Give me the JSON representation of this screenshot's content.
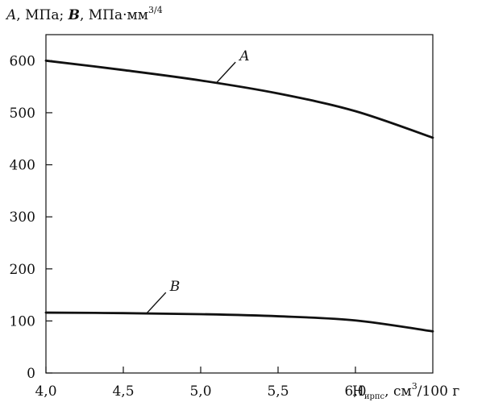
{
  "chart_data": {
    "type": "line",
    "title": "",
    "ylabel": {
      "prefix": "A",
      "unit_a": ", МПа; ",
      "symbol_b": "B",
      "unit_b": ", МПа·мм",
      "unit_b_sup": "3/4"
    },
    "xlabel": {
      "main": "H",
      "sub": "ирпс",
      "unit": ", см",
      "unit_sup": "3",
      "tail": "/100 г"
    },
    "xlim": [
      4.0,
      6.5
    ],
    "ylim": [
      0,
      650
    ],
    "x_ticks": [
      4.0,
      4.5,
      5.0,
      5.5,
      6.0
    ],
    "x_tick_labels": [
      "4,0",
      "4,5",
      "5,0",
      "5,5",
      "6,0"
    ],
    "y_ticks": [
      0,
      100,
      200,
      300,
      400,
      500,
      600
    ],
    "y_tick_labels": [
      "0",
      "100",
      "200",
      "300",
      "400",
      "500",
      "600"
    ],
    "grid": false,
    "series": [
      {
        "name": "A",
        "color": "#111111",
        "x": [
          4.0,
          4.5,
          5.0,
          5.5,
          6.0,
          6.5
        ],
        "y": [
          600,
          582,
          562,
          537,
          503,
          452
        ]
      },
      {
        "name": "B",
        "color": "#111111",
        "x": [
          4.0,
          4.5,
          5.0,
          5.5,
          6.0,
          6.5
        ],
        "y": [
          116,
          115,
          113,
          109,
          101,
          80
        ]
      }
    ]
  }
}
